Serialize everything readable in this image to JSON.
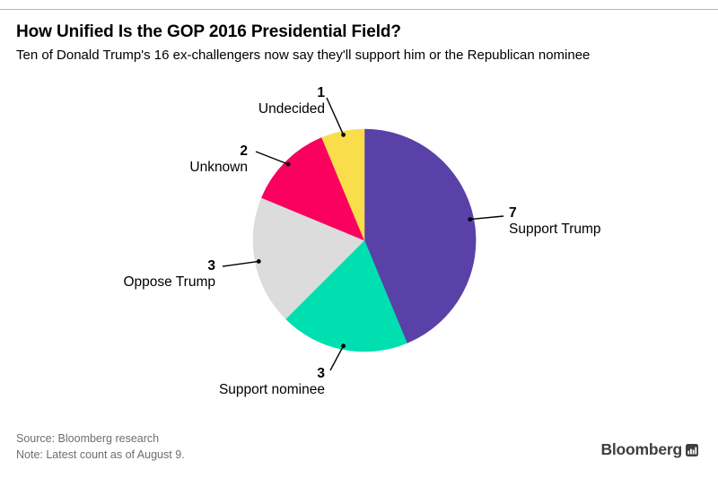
{
  "header": {
    "title": "How Unified Is the GOP 2016 Presidential Field?",
    "subtitle": "Ten of Donald Trump's 16 ex-challengers now say they'll support him or the Republican nominee"
  },
  "chart_data": {
    "type": "pie",
    "title": "How Unified Is the GOP 2016 Presidential Field?",
    "categories": [
      "Support Trump",
      "Support nominee",
      "Oppose Trump",
      "Unknown",
      "Undecided"
    ],
    "values": [
      7,
      3,
      3,
      2,
      1
    ],
    "total": 16,
    "colors": [
      "#5941a8",
      "#00dfb0",
      "#dcdcdc",
      "#fa005f",
      "#fadd4b"
    ],
    "start_angle_deg": 0,
    "direction": "clockwise",
    "legend_position": "none",
    "label_style": "callout-with-leader-lines",
    "leader_line_color": "#000000"
  },
  "footer": {
    "source": "Source: Bloomberg research",
    "note": "Note: Latest count as of August 9.",
    "brand": "Bloomberg",
    "brand_icon": "bar-chart-icon"
  }
}
